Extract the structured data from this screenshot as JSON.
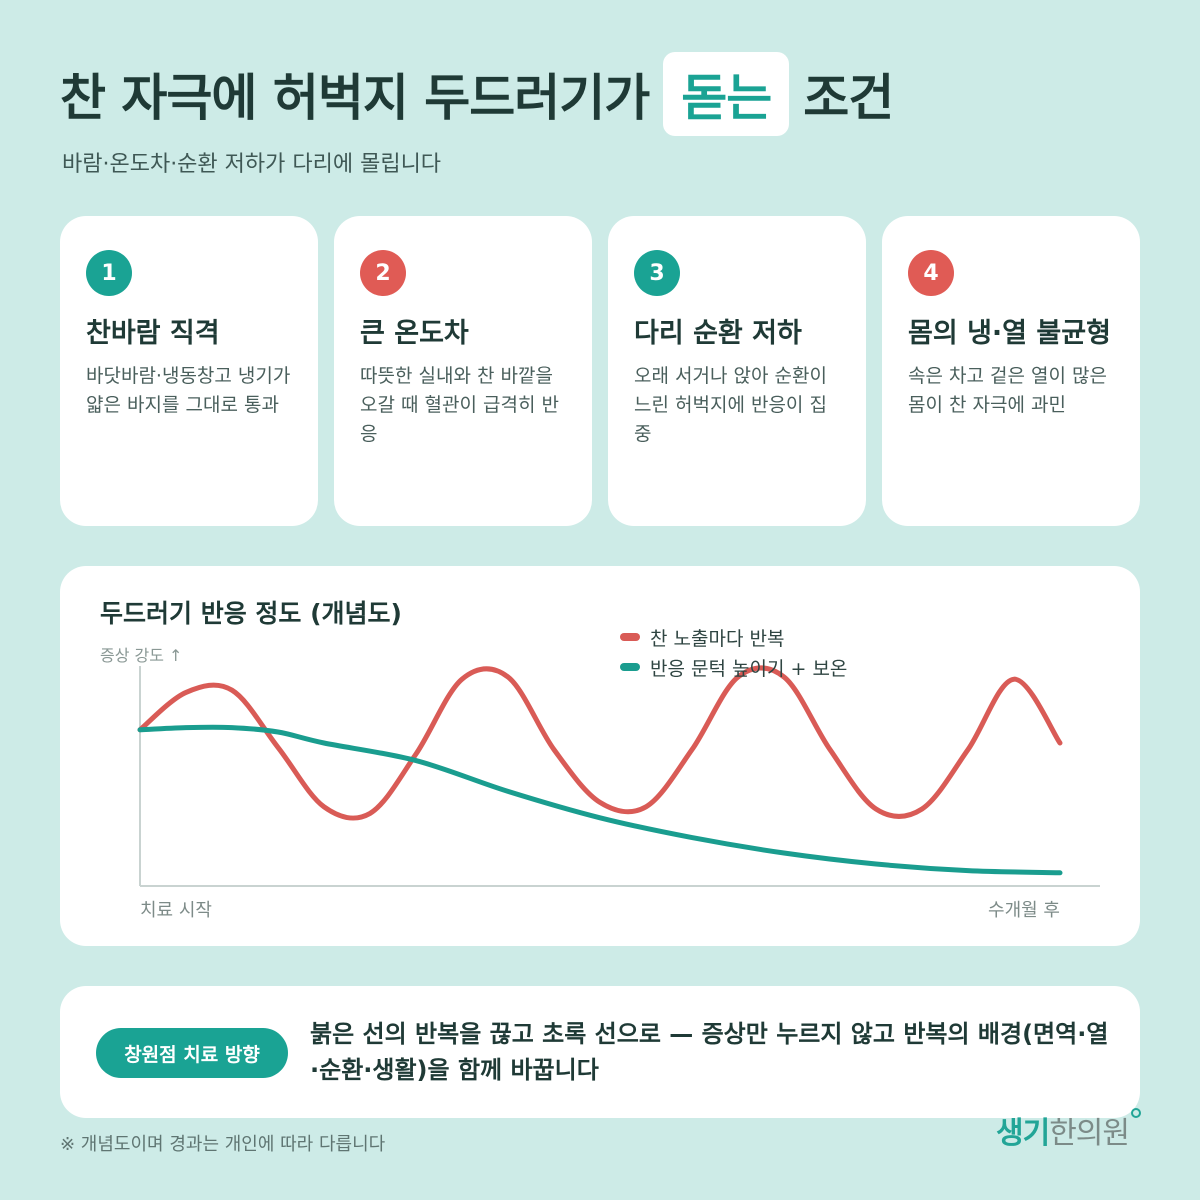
{
  "header": {
    "title_before": "찬 자극에 허벅지 두드러기가",
    "title_highlight": "돋는",
    "title_after": "조건",
    "subtitle": "바람·온도차·순환 저하가 다리에 몰립니다"
  },
  "cards": [
    {
      "number": "1",
      "title": "찬바람 직격",
      "desc": "바닷바람·냉동창고 냉기가 얇은 바지를 그대로 통과",
      "badge_color": "#1aa394"
    },
    {
      "number": "2",
      "title": "큰 온도차",
      "desc": "따뜻한 실내와 찬 바깥을 오갈 때 혈관이 급격히 반응",
      "badge_color": "#e05b55"
    },
    {
      "number": "3",
      "title": "다리 순환 저하",
      "desc": "오래 서거나 앉아 순환이 느린 허벅지에 반응이 집중",
      "badge_color": "#1aa394"
    },
    {
      "number": "4",
      "title": "몸의 냉·열 불균형",
      "desc": "속은 차고 겉은 열이 많은 몸이 찬 자극에 과민",
      "badge_color": "#e05b55"
    }
  ],
  "chart": {
    "title": "두드러기 반응 정도 (개념도)",
    "y_label": "증상 강도 ↑",
    "x_start": "치료 시작",
    "x_end": "수개월 후"
  },
  "chart_data": {
    "type": "line",
    "title": "두드러기 반응 정도 (개념도)",
    "ylabel": "증상 강도 ↑",
    "x_labels": [
      "치료 시작",
      "수개월 후"
    ],
    "series": [
      {
        "name": "찬 노출마다 반복",
        "color": "#d95b56",
        "points": [
          [
            0,
            0.71
          ],
          [
            0.05,
            0.88
          ],
          [
            0.1,
            0.89
          ],
          [
            0.15,
            0.63
          ],
          [
            0.2,
            0.36
          ],
          [
            0.25,
            0.33
          ],
          [
            0.3,
            0.6
          ],
          [
            0.35,
            0.94
          ],
          [
            0.4,
            0.95
          ],
          [
            0.45,
            0.62
          ],
          [
            0.5,
            0.38
          ],
          [
            0.55,
            0.36
          ],
          [
            0.6,
            0.62
          ],
          [
            0.65,
            0.95
          ],
          [
            0.7,
            0.95
          ],
          [
            0.75,
            0.62
          ],
          [
            0.8,
            0.35
          ],
          [
            0.85,
            0.35
          ],
          [
            0.9,
            0.62
          ],
          [
            0.95,
            0.94
          ],
          [
            1.0,
            0.65
          ]
        ]
      },
      {
        "name": "반응 문턱 높이기 + 보온",
        "color": "#1a9d8f",
        "points": [
          [
            0,
            0.71
          ],
          [
            0.05,
            0.72
          ],
          [
            0.1,
            0.72
          ],
          [
            0.15,
            0.7
          ],
          [
            0.2,
            0.65
          ],
          [
            0.3,
            0.57
          ],
          [
            0.4,
            0.43
          ],
          [
            0.5,
            0.31
          ],
          [
            0.6,
            0.22
          ],
          [
            0.7,
            0.15
          ],
          [
            0.8,
            0.1
          ],
          [
            0.9,
            0.07
          ],
          [
            1.0,
            0.06
          ]
        ]
      }
    ]
  },
  "bottom": {
    "pill_label": "창원점 치료 방향",
    "message": "붉은 선의 반복을 끊고 초록 선으로 — 증상만 누르지 않고 반복의 배경(면역·열·순환·생활)을 함께 바꿉니다"
  },
  "footnote": "※ 개념도이며 경과는 개인에 따라 다릅니다",
  "logo": {
    "part1": "생기",
    "part2": "한의원"
  }
}
